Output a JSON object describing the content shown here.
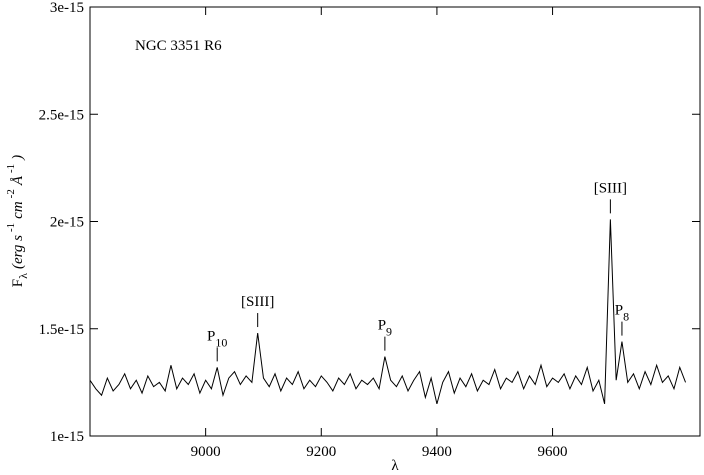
{
  "chart_data": {
    "type": "line",
    "title": "NGC 3351 R6",
    "xlabel": "λ",
    "ylabel": [
      {
        "text": "F"
      },
      {
        "text": "λ",
        "shift": "sub"
      },
      {
        "text": "(erg s"
      },
      {
        "text": "-1",
        "shift": "super"
      },
      {
        "text": "cm"
      },
      {
        "text": "-2",
        "shift": "super"
      },
      {
        "text": "Å"
      },
      {
        "text": "-1",
        "shift": "super"
      },
      {
        "text": ")"
      }
    ],
    "color": "#000000",
    "xlim": [
      8800,
      9855
    ],
    "xticks": [
      9000,
      9200,
      9400,
      9600
    ],
    "ylim": [
      1e-15,
      3e-15
    ],
    "yticks": [
      {
        "value": 1e-15,
        "label": "1e-15"
      },
      {
        "value": 1.5e-15,
        "label": "1.5e-15"
      },
      {
        "value": 2e-15,
        "label": "2e-15"
      },
      {
        "value": 2.5e-15,
        "label": "2.5e-15"
      },
      {
        "value": 3e-15,
        "label": "3e-15"
      }
    ],
    "x": [
      8800,
      8810,
      8820,
      8830,
      8840,
      8850,
      8860,
      8870,
      8880,
      8890,
      8900,
      8910,
      8920,
      8930,
      8940,
      8950,
      8960,
      8970,
      8980,
      8990,
      9000,
      9010,
      9020,
      9030,
      9040,
      9050,
      9060,
      9070,
      9080,
      9090,
      9100,
      9110,
      9120,
      9130,
      9140,
      9150,
      9160,
      9170,
      9180,
      9190,
      9200,
      9210,
      9220,
      9230,
      9240,
      9250,
      9260,
      9270,
      9280,
      9290,
      9300,
      9310,
      9320,
      9330,
      9340,
      9350,
      9360,
      9370,
      9380,
      9390,
      9400,
      9410,
      9420,
      9430,
      9440,
      9450,
      9460,
      9470,
      9480,
      9490,
      9500,
      9510,
      9520,
      9530,
      9540,
      9550,
      9560,
      9570,
      9580,
      9590,
      9600,
      9610,
      9620,
      9630,
      9640,
      9650,
      9660,
      9670,
      9680,
      9690,
      9700,
      9710,
      9720,
      9730,
      9740,
      9750,
      9760,
      9770,
      9780,
      9790,
      9800,
      9810,
      9820,
      9830
    ],
    "values": [
      1.26e-15,
      1.22e-15,
      1.19e-15,
      1.27e-15,
      1.21e-15,
      1.24e-15,
      1.29e-15,
      1.22e-15,
      1.26e-15,
      1.2e-15,
      1.28e-15,
      1.23e-15,
      1.25e-15,
      1.21e-15,
      1.33e-15,
      1.22e-15,
      1.27e-15,
      1.24e-15,
      1.29e-15,
      1.2e-15,
      1.26e-15,
      1.22e-15,
      1.32e-15,
      1.19e-15,
      1.27e-15,
      1.3e-15,
      1.24e-15,
      1.28e-15,
      1.25e-15,
      1.48e-15,
      1.27e-15,
      1.23e-15,
      1.29e-15,
      1.21e-15,
      1.27e-15,
      1.24e-15,
      1.3e-15,
      1.22e-15,
      1.26e-15,
      1.23e-15,
      1.28e-15,
      1.25e-15,
      1.21e-15,
      1.27e-15,
      1.24e-15,
      1.29e-15,
      1.22e-15,
      1.26e-15,
      1.24e-15,
      1.27e-15,
      1.22e-15,
      1.37e-15,
      1.26e-15,
      1.23e-15,
      1.28e-15,
      1.21e-15,
      1.26e-15,
      1.3e-15,
      1.18e-15,
      1.27e-15,
      1.15e-15,
      1.25e-15,
      1.3e-15,
      1.2e-15,
      1.27e-15,
      1.23e-15,
      1.29e-15,
      1.21e-15,
      1.26e-15,
      1.24e-15,
      1.31e-15,
      1.22e-15,
      1.27e-15,
      1.25e-15,
      1.3e-15,
      1.22e-15,
      1.28e-15,
      1.24e-15,
      1.33e-15,
      1.23e-15,
      1.27e-15,
      1.25e-15,
      1.29e-15,
      1.22e-15,
      1.28e-15,
      1.24e-15,
      1.32e-15,
      1.21e-15,
      1.26e-15,
      1.15e-15,
      2.01e-15,
      1.26e-15,
      1.44e-15,
      1.25e-15,
      1.29e-15,
      1.22e-15,
      1.3e-15,
      1.24e-15,
      1.33e-15,
      1.25e-15,
      1.28e-15,
      1.22e-15,
      1.32e-15,
      1.25e-15
    ],
    "annotations": [
      {
        "text": "P",
        "sub": "10",
        "x": 9020
      },
      {
        "text": "[SIII]",
        "x": 9090
      },
      {
        "text": "P",
        "sub": "9",
        "x": 9310
      },
      {
        "text": "[SIII]",
        "x": 9700
      },
      {
        "text": "P",
        "sub": "8",
        "x": 9720
      }
    ]
  }
}
